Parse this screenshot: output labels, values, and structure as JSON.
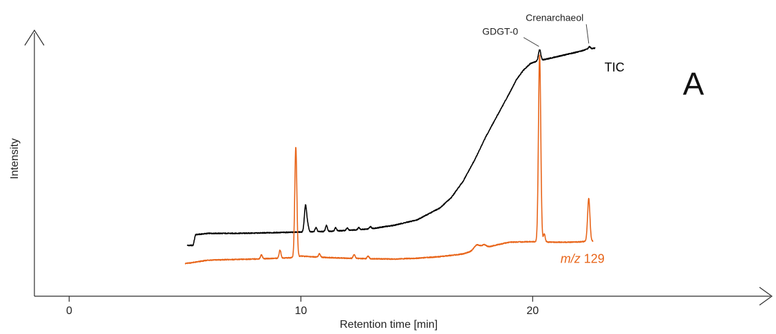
{
  "chart_data": {
    "type": "line",
    "title": "",
    "panel_label": "A",
    "xlabel": "Retention time [min]",
    "ylabel": "Intensity",
    "xlim": [
      -1.5,
      30.5
    ],
    "ylim": [
      0,
      100
    ],
    "x_ticks": [
      {
        "value": 0,
        "label": "0"
      },
      {
        "value": 10,
        "label": "10"
      },
      {
        "value": 20,
        "label": "20"
      }
    ],
    "grid": false,
    "series": [
      {
        "name": "TIC",
        "color": "#000000",
        "label_x": 23.1,
        "label_y": 84,
        "baseline": [
          [
            5.1,
            19
          ],
          [
            5.35,
            19
          ],
          [
            5.45,
            23
          ],
          [
            6,
            23.5
          ],
          [
            7,
            23.5
          ],
          [
            8,
            23.6
          ],
          [
            9,
            23.8
          ],
          [
            10,
            24
          ],
          [
            11,
            24.2
          ],
          [
            12,
            24.6
          ],
          [
            13,
            25.2
          ],
          [
            14,
            26.5
          ],
          [
            15,
            28.5
          ],
          [
            16,
            33
          ],
          [
            16.5,
            37
          ],
          [
            17,
            43
          ],
          [
            17.5,
            51
          ],
          [
            18,
            60
          ],
          [
            18.5,
            68
          ],
          [
            19,
            76
          ],
          [
            19.3,
            81
          ],
          [
            19.6,
            84.5
          ],
          [
            19.9,
            87
          ],
          [
            20.2,
            88
          ],
          [
            20.5,
            88.5
          ],
          [
            21,
            89.5
          ],
          [
            21.5,
            90.5
          ],
          [
            22,
            91.5
          ],
          [
            22.4,
            92.5
          ],
          [
            22.7,
            92.8
          ]
        ],
        "peaks": [
          {
            "x": 10.2,
            "height": 10,
            "width": 0.05
          },
          {
            "x": 10.3,
            "height": 2,
            "width": 0.04
          },
          {
            "x": 10.65,
            "height": 1.5,
            "width": 0.04
          },
          {
            "x": 11.1,
            "height": 2.2,
            "width": 0.04
          },
          {
            "x": 11.5,
            "height": 1.2,
            "width": 0.04
          },
          {
            "x": 12.0,
            "height": 0.9,
            "width": 0.04
          },
          {
            "x": 12.5,
            "height": 0.8,
            "width": 0.04
          },
          {
            "x": 13.0,
            "height": 0.8,
            "width": 0.04
          },
          {
            "x": 20.3,
            "height": 4,
            "width": 0.05
          },
          {
            "x": 22.45,
            "height": 0.8,
            "width": 0.04
          }
        ],
        "annotations": [
          {
            "label": "GDGT-0",
            "peak_x": 20.3,
            "peak_y": 92.4,
            "text_x": 18.6,
            "text_y": 97.8,
            "anchor": "middle"
          },
          {
            "label": "Crenarchaeol",
            "peak_x": 22.45,
            "peak_y": 93.5,
            "text_x": 19.7,
            "text_y": 103,
            "anchor": "start"
          }
        ]
      },
      {
        "name": "m/z 129",
        "label_prefix": "m/z",
        "label_suffix": " 129",
        "color": "#e8651a",
        "label_x": 21.2,
        "label_y": 12.5,
        "baseline": [
          [
            5.0,
            12.2
          ],
          [
            5.5,
            12.8
          ],
          [
            6,
            13.5
          ],
          [
            7,
            13.7
          ],
          [
            8,
            13.9
          ],
          [
            9,
            14.2
          ],
          [
            9.55,
            14.4
          ],
          [
            10,
            15
          ],
          [
            11,
            14.5
          ],
          [
            12,
            14.2
          ],
          [
            13,
            14
          ],
          [
            14,
            13.9
          ],
          [
            15,
            14.2
          ],
          [
            16,
            14.8
          ],
          [
            17,
            15.8
          ],
          [
            17.5,
            17.2
          ],
          [
            18,
            18.2
          ],
          [
            18.5,
            19.3
          ],
          [
            19,
            20.2
          ],
          [
            19.5,
            20.3
          ],
          [
            20,
            20.4
          ],
          [
            20.5,
            20.3
          ],
          [
            21,
            20.2
          ],
          [
            21.5,
            20.2
          ],
          [
            22,
            20.3
          ],
          [
            22.4,
            20.6
          ],
          [
            22.6,
            20.6
          ]
        ],
        "peaks": [
          {
            "x": 9.78,
            "height": 41,
            "width": 0.045
          },
          {
            "x": 9.1,
            "height": 3,
            "width": 0.04
          },
          {
            "x": 8.3,
            "height": 1.5,
            "width": 0.04
          },
          {
            "x": 10.8,
            "height": 1.3,
            "width": 0.04
          },
          {
            "x": 12.3,
            "height": 1.5,
            "width": 0.04
          },
          {
            "x": 12.9,
            "height": 1,
            "width": 0.04
          },
          {
            "x": 17.6,
            "height": 1.8,
            "width": 0.12
          },
          {
            "x": 17.9,
            "height": 1.2,
            "width": 0.1
          },
          {
            "x": 20.3,
            "height": 70,
            "width": 0.05
          },
          {
            "x": 20.5,
            "height": 3,
            "width": 0.04
          },
          {
            "x": 22.42,
            "height": 16,
            "width": 0.05
          }
        ]
      }
    ]
  }
}
